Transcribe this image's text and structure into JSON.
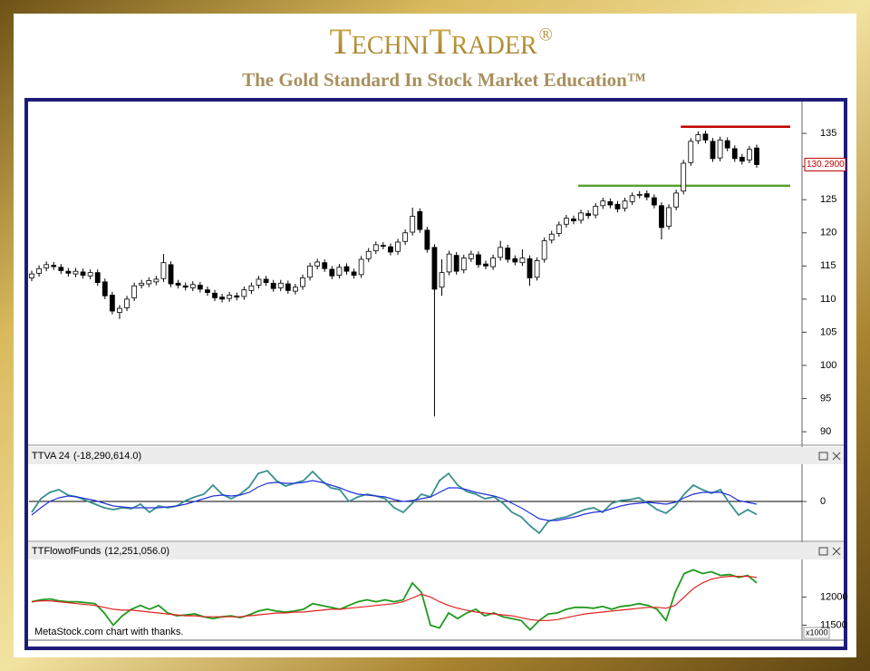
{
  "brand": "TechniTrader",
  "registered": "®",
  "tagline": "The Gold Standard In Stock Market Education™",
  "credit": "MetaStock.com chart with thanks.",
  "chart_data": [
    {
      "type": "candlestick",
      "open": [
        113.2,
        113.9,
        114.7,
        115.1,
        114.8,
        114.2,
        113.8,
        114.1,
        113.5,
        114.0,
        112.6,
        110.6,
        108.0,
        108.7,
        110.2,
        112.1,
        112.3,
        112.6,
        113.1,
        115.2,
        112.4,
        112.0,
        111.7,
        112.1,
        111.4,
        110.9,
        110.3,
        110.1,
        110.5,
        110.4,
        111.3,
        112.1,
        113.0,
        112.4,
        111.7,
        112.3,
        111.2,
        111.9,
        113.3,
        115.0,
        115.5,
        114.5,
        113.6,
        114.9,
        114.1,
        113.7,
        116.1,
        117.3,
        118.1,
        117.9,
        117.2,
        118.7,
        120.1,
        123.2,
        120.4,
        117.8,
        111.8,
        114.1,
        116.6,
        114.4,
        116.1,
        116.7,
        115.3,
        114.9,
        116.3,
        117.7,
        116.1,
        115.5,
        116.1,
        113.3,
        116.0,
        118.9,
        119.9,
        121.3,
        122.1,
        121.9,
        122.9,
        122.7,
        124.1,
        124.7,
        124.3,
        123.7,
        124.7,
        125.7,
        125.9,
        125.3,
        124.1,
        121.0,
        123.9,
        126.3,
        130.6,
        133.9,
        134.9,
        133.8,
        131.3,
        133.9,
        132.7,
        131.4,
        131.0,
        132.8
      ],
      "high": [
        114.3,
        115.1,
        115.7,
        115.6,
        115.3,
        114.7,
        114.7,
        114.6,
        114.5,
        114.5,
        113.1,
        111.1,
        109.1,
        110.5,
        112.5,
        112.9,
        113.3,
        113.5,
        116.8,
        115.7,
        112.9,
        112.5,
        112.7,
        112.6,
        111.9,
        111.4,
        110.8,
        111.1,
        111.0,
        111.9,
        112.5,
        113.5,
        113.5,
        112.9,
        112.9,
        112.8,
        112.3,
        113.7,
        115.5,
        116.1,
        116.0,
        115.0,
        115.3,
        115.4,
        114.6,
        116.5,
        117.7,
        118.7,
        118.6,
        118.4,
        119.1,
        120.5,
        123.8,
        123.7,
        120.9,
        118.3,
        116.0,
        117.3,
        117.1,
        116.7,
        117.3,
        117.2,
        115.8,
        116.7,
        118.8,
        118.2,
        116.6,
        117.5,
        116.6,
        116.3,
        119.3,
        120.3,
        121.7,
        122.7,
        122.6,
        123.5,
        123.4,
        124.5,
        125.3,
        125.2,
        124.8,
        125.3,
        126.1,
        126.3,
        126.4,
        125.8,
        124.6,
        124.3,
        126.5,
        131.0,
        134.3,
        135.3,
        135.4,
        134.3,
        134.5,
        134.4,
        133.2,
        131.9,
        133.1,
        133.3
      ],
      "low": [
        112.7,
        113.4,
        114.2,
        114.4,
        113.8,
        113.4,
        113.3,
        113.1,
        113.0,
        112.0,
        110.0,
        107.7,
        107.0,
        108.2,
        109.7,
        111.6,
        111.8,
        112.1,
        112.6,
        111.8,
        111.6,
        111.3,
        111.2,
        111.0,
        110.5,
        109.7,
        109.5,
        109.6,
        109.8,
        109.9,
        110.8,
        111.6,
        112.0,
        111.1,
        111.2,
        110.8,
        110.7,
        111.4,
        112.8,
        114.5,
        114.1,
        113.0,
        113.1,
        113.7,
        113.1,
        113.2,
        115.6,
        116.8,
        117.5,
        116.6,
        116.7,
        118.2,
        119.6,
        120.0,
        117.0,
        92.3,
        110.5,
        113.6,
        113.7,
        113.9,
        115.6,
        114.7,
        114.5,
        114.4,
        115.8,
        115.5,
        115.1,
        115.0,
        112.0,
        112.8,
        115.5,
        118.4,
        119.4,
        120.8,
        121.3,
        121.4,
        122.1,
        122.2,
        123.6,
        123.7,
        123.1,
        123.2,
        124.2,
        125.2,
        124.9,
        123.7,
        119.0,
        120.5,
        123.4,
        125.8,
        130.1,
        133.4,
        133.5,
        130.7,
        130.8,
        132.3,
        130.7,
        130.3,
        130.5,
        129.8
      ],
      "close": [
        113.8,
        114.6,
        115.2,
        114.9,
        114.3,
        113.9,
        114.2,
        113.6,
        114.0,
        112.5,
        110.5,
        108.2,
        108.6,
        110.0,
        112.0,
        112.4,
        112.8,
        113.0,
        115.5,
        112.3,
        112.1,
        111.8,
        112.2,
        111.5,
        111.0,
        110.2,
        110.0,
        110.6,
        110.3,
        111.4,
        112.0,
        113.0,
        112.5,
        111.6,
        112.4,
        111.3,
        111.8,
        113.2,
        115.0,
        115.6,
        114.6,
        113.5,
        114.8,
        114.2,
        113.6,
        116.0,
        117.2,
        118.2,
        118.0,
        117.1,
        118.6,
        120.0,
        122.5,
        120.5,
        117.5,
        111.5,
        114.0,
        116.8,
        114.2,
        116.2,
        116.8,
        115.2,
        115.0,
        116.2,
        117.8,
        116.0,
        115.6,
        116.2,
        113.2,
        115.8,
        118.8,
        119.8,
        121.2,
        122.2,
        121.8,
        123.0,
        122.6,
        124.0,
        124.8,
        124.2,
        123.6,
        124.8,
        125.6,
        125.8,
        125.4,
        124.2,
        120.8,
        123.8,
        126.0,
        130.5,
        133.8,
        134.8,
        134.0,
        131.2,
        134.0,
        132.8,
        131.2,
        130.8,
        132.6,
        130.3
      ],
      "up_color": "#ffffff",
      "down_color": "#000000",
      "ylim": [
        88.1,
        139.8
      ],
      "yticks": [
        90,
        95,
        100,
        105,
        110,
        115,
        120,
        125,
        130,
        135
      ],
      "grid": false,
      "levels": [
        {
          "value": 136,
          "color": "#c00000",
          "start_index": 89
        },
        {
          "value": 127.1,
          "color": "#5aa02c",
          "start_index": 75
        }
      ],
      "last_label": {
        "value": 130.29,
        "label": "130.2900"
      }
    },
    {
      "type": "line",
      "readout": "(-18,290,614.0)",
      "readout_color": "#2e8b8b",
      "ylim": [
        -53200000,
        49400000
      ],
      "yticks": [
        0
      ],
      "grid": true,
      "series": [
        {
          "name": "TTVA 24",
          "color": "#3a8f8f",
          "values": [
            -15200000.0,
            3800000.0,
            12700000.0,
            16500000.0,
            8900000.0,
            6300000.0,
            1300000.0,
            -3800000.0,
            -8900000.0,
            -11400000.0,
            -8900000.0,
            -10100000.0,
            -3800000.0,
            -15200000.0,
            -6300000.0,
            -8900000.0,
            -6300000.0,
            1300000.0,
            6300000.0,
            10100000.0,
            22800000.0,
            10100000.0,
            3800000.0,
            10100000.0,
            20300000.0,
            39200000.0,
            43000000.0,
            29100000.0,
            21500000.0,
            25300000.0,
            29100000.0,
            41800000.0,
            29100000.0,
            19000000.0,
            16500000.0,
            0,
            6300000.0,
            10100000.0,
            7600000.0,
            3800000.0,
            -8900000.0,
            -15200000.0,
            -2500000.0,
            10100000.0,
            6300000.0,
            29100000.0,
            39200000.0,
            22800000.0,
            13900000.0,
            10100000.0,
            3800000.0,
            6300000.0,
            -2500000.0,
            -15200000.0,
            -21500000.0,
            -34200000.0,
            -44300000.0,
            -27800000.0,
            -24100000.0,
            -21500000.0,
            -16500000.0,
            -11400000.0,
            -8900000.0,
            -15200000.0,
            -2500000.0,
            1300000.0,
            2500000.0,
            5100000.0,
            -2500000.0,
            -11400000.0,
            -16500000.0,
            -6300000.0,
            10100000.0,
            22800000.0,
            16500000.0,
            11400000.0,
            16500000.0,
            -2500000.0,
            -19000000.0,
            -11400000.0,
            -18290614
          ]
        },
        {
          "color": "#2233dd",
          "values": [
            -19000000.0,
            -8900000.0,
            0,
            5100000.0,
            7600000.0,
            6300000.0,
            3800000.0,
            1300000.0,
            -2500000.0,
            -6300000.0,
            -7600000.0,
            -8900000.0,
            -8900000.0,
            -8900000.0,
            -8900000.0,
            -7600000.0,
            -6300000.0,
            -3800000.0,
            0,
            3800000.0,
            7600000.0,
            8900000.0,
            7600000.0,
            8900000.0,
            12700000.0,
            20300000.0,
            25300000.0,
            26600000.0,
            25300000.0,
            25300000.0,
            26600000.0,
            29100000.0,
            26600000.0,
            22800000.0,
            19000000.0,
            13900000.0,
            10100000.0,
            8900000.0,
            7600000.0,
            6300000.0,
            2500000.0,
            0,
            1300000.0,
            3800000.0,
            6300000.0,
            12700000.0,
            19000000.0,
            19000000.0,
            16500000.0,
            12700000.0,
            10100000.0,
            7600000.0,
            3800000.0,
            -2500000.0,
            -8900000.0,
            -16500000.0,
            -24100000.0,
            -26600000.0,
            -26600000.0,
            -24100000.0,
            -21500000.0,
            -17700000.0,
            -15200000.0,
            -13900000.0,
            -10100000.0,
            -6300000.0,
            -3800000.0,
            -2500000.0,
            -1300000.0,
            -2500000.0,
            -3800000.0,
            -1300000.0,
            5100000.0,
            10100000.0,
            12700000.0,
            12700000.0,
            12700000.0,
            8900000.0,
            1300000.0,
            -1300000.0,
            -3800000.0
          ]
        }
      ]
    },
    {
      "type": "line",
      "readout": "(12,251,056.0)",
      "readout_color": "#2a9d2a",
      "axis_multiplier": "x1000",
      "ylim": [
        11250,
        12667
      ],
      "yticks": [
        12000,
        11500
      ],
      "grid": false,
      "series": [
        {
          "name": "TTFlowofFunds",
          "color": "#1f9a1f",
          "values": [
            11917,
            11950,
            11967,
            11933,
            11917,
            11917,
            11900,
            11883,
            11717,
            11500,
            11667,
            11783,
            11850,
            11783,
            11850,
            11717,
            11667,
            11683,
            11700,
            11650,
            11617,
            11650,
            11667,
            11633,
            11683,
            11750,
            11783,
            11750,
            11733,
            11750,
            11783,
            11883,
            11850,
            11817,
            11783,
            11850,
            11917,
            11950,
            11917,
            11950,
            11917,
            11950,
            12250,
            12083,
            11500,
            11450,
            11717,
            11617,
            11717,
            11783,
            11667,
            11717,
            11650,
            11617,
            11583,
            11417,
            11583,
            11700,
            11717,
            11783,
            11817,
            11817,
            11800,
            11833,
            11783,
            11833,
            11850,
            11883,
            11850,
            11783,
            11583,
            12083,
            12417,
            12483,
            12417,
            12450,
            12383,
            12400,
            12350,
            12383,
            12251.056
          ]
        },
        {
          "color": "#e02020",
          "values": [
            11917,
            11933,
            11933,
            11917,
            11900,
            11883,
            11867,
            11850,
            11817,
            11783,
            11767,
            11767,
            11750,
            11733,
            11717,
            11700,
            11683,
            11667,
            11667,
            11650,
            11650,
            11650,
            11650,
            11650,
            11667,
            11683,
            11700,
            11717,
            11717,
            11733,
            11733,
            11750,
            11767,
            11783,
            11783,
            11800,
            11817,
            11833,
            11850,
            11867,
            11883,
            11917,
            11983,
            12050,
            12000,
            11917,
            11850,
            11800,
            11767,
            11733,
            11717,
            11700,
            11683,
            11667,
            11633,
            11600,
            11583,
            11583,
            11600,
            11633,
            11667,
            11700,
            11717,
            11733,
            11750,
            11767,
            11783,
            11800,
            11817,
            11817,
            11800,
            11850,
            12000,
            12150,
            12250,
            12317,
            12350,
            12367,
            12367,
            12367,
            12350
          ]
        }
      ]
    }
  ]
}
